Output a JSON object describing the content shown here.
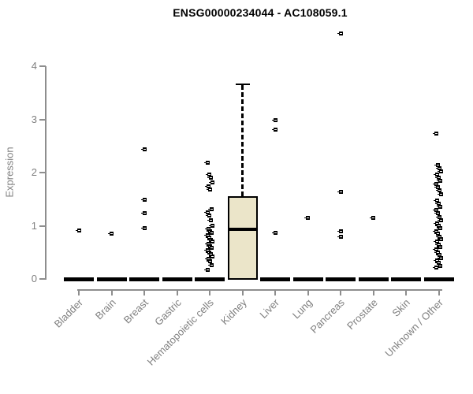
{
  "page": {
    "background": "#ffffff"
  },
  "chart_data": {
    "type": "boxplot",
    "title": "ENSG00000234044 - AC108059.1",
    "ylabel": "Expression",
    "xlabel": "",
    "ylim": [
      0,
      4.7
    ],
    "yticks": [
      0,
      1,
      2,
      3,
      4
    ],
    "grid": false,
    "legend": null,
    "axis_color": "#8e8e8e",
    "label_color": "#808080",
    "box_fill": "#ebe5c9",
    "box_stroke": "#000000",
    "point_color": "#000000",
    "categories": [
      {
        "label": "Bladder",
        "median": 0,
        "points": [
          0.91
        ]
      },
      {
        "label": "Brain",
        "median": 0,
        "points": [
          0.85
        ]
      },
      {
        "label": "Breast",
        "median": 0,
        "points": [
          2.43,
          1.49,
          1.24,
          0.96
        ]
      },
      {
        "label": "Gastric",
        "median": 0,
        "points": []
      },
      {
        "label": "Hematopoietic cells",
        "median": 0,
        "points": [
          2.18,
          1.97,
          1.9,
          1.81,
          1.74,
          1.68,
          1.31,
          1.25,
          1.19,
          1.11,
          1.0,
          0.94,
          0.9,
          0.86,
          0.82,
          0.78,
          0.74,
          0.7,
          0.66,
          0.62,
          0.58,
          0.54,
          0.5,
          0.46,
          0.42,
          0.38,
          0.34,
          0.26,
          0.17
        ]
      },
      {
        "label": "Kidney",
        "median": 0.93,
        "box": {
          "q1": 0,
          "median": 0.93,
          "q3": 1.56,
          "whisker_low": 0,
          "whisker_high": 3.67
        },
        "points": []
      },
      {
        "label": "Liver",
        "median": 0,
        "points": [
          2.99,
          2.81,
          0.86
        ]
      },
      {
        "label": "Lung",
        "median": 0,
        "points": [
          1.15
        ]
      },
      {
        "label": "Pancreas",
        "median": 0,
        "points": [
          4.61,
          1.64,
          0.9,
          0.8
        ]
      },
      {
        "label": "Prostate",
        "median": 0,
        "points": [
          1.15
        ]
      },
      {
        "label": "Skin",
        "median": 0,
        "points": []
      },
      {
        "label": "Unknown / Other",
        "median": 0,
        "points": [
          2.73,
          2.14,
          2.08,
          2.02,
          1.96,
          1.9,
          1.84,
          1.78,
          1.72,
          1.66,
          1.6,
          1.47,
          1.41,
          1.35,
          1.29,
          1.23,
          1.17,
          1.11,
          1.05,
          1.0,
          0.95,
          0.9,
          0.85,
          0.8,
          0.75,
          0.7,
          0.65,
          0.6,
          0.55,
          0.5,
          0.45,
          0.4,
          0.35,
          0.3,
          0.25,
          0.21
        ]
      }
    ]
  }
}
